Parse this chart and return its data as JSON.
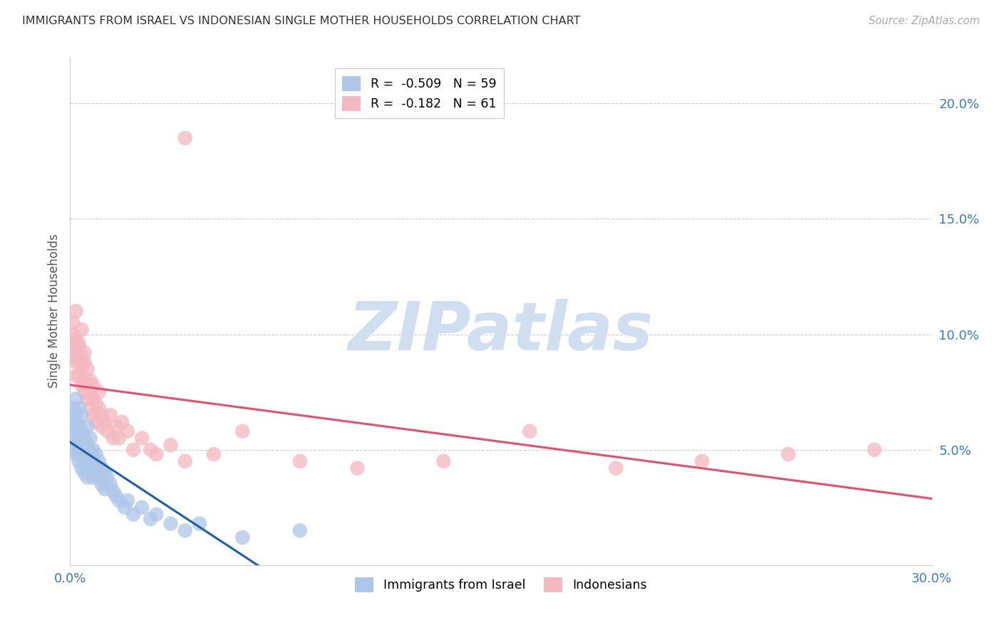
{
  "title": "IMMIGRANTS FROM ISRAEL VS INDONESIAN SINGLE MOTHER HOUSEHOLDS CORRELATION CHART",
  "source": "Source: ZipAtlas.com",
  "ylabel": "Single Mother Households",
  "xlim": [
    0.0,
    0.3
  ],
  "ylim": [
    0.0,
    0.22
  ],
  "xticks": [
    0.0,
    0.05,
    0.1,
    0.15,
    0.2,
    0.25,
    0.3
  ],
  "xticklabels": [
    "0.0%",
    "",
    "",
    "",
    "",
    "",
    "30.0%"
  ],
  "yticks_right": [
    0.05,
    0.1,
    0.15,
    0.2
  ],
  "yticklabels_right": [
    "5.0%",
    "10.0%",
    "15.0%",
    "20.0%"
  ],
  "legend1_color": "#aec6e8",
  "legend2_color": "#f4b8c1",
  "line1_color": "#1a5fa8",
  "line2_color": "#e05070",
  "scatter1_color": "#aec6e8",
  "scatter2_color": "#f4b8c1",
  "watermark": "ZIPatlas",
  "watermark_color": "#d0dff0",
  "R1": -0.509,
  "N1": 59,
  "R2": -0.182,
  "N2": 61,
  "israel_x": [
    0.001,
    0.001,
    0.001,
    0.001,
    0.001,
    0.002,
    0.002,
    0.002,
    0.002,
    0.002,
    0.002,
    0.003,
    0.003,
    0.003,
    0.003,
    0.003,
    0.004,
    0.004,
    0.004,
    0.004,
    0.004,
    0.005,
    0.005,
    0.005,
    0.005,
    0.006,
    0.006,
    0.006,
    0.006,
    0.007,
    0.007,
    0.007,
    0.008,
    0.008,
    0.008,
    0.009,
    0.009,
    0.01,
    0.01,
    0.011,
    0.011,
    0.012,
    0.012,
    0.013,
    0.014,
    0.015,
    0.016,
    0.017,
    0.019,
    0.02,
    0.022,
    0.025,
    0.028,
    0.03,
    0.035,
    0.04,
    0.045,
    0.06,
    0.08
  ],
  "israel_y": [
    0.065,
    0.068,
    0.06,
    0.055,
    0.05,
    0.072,
    0.065,
    0.058,
    0.052,
    0.048,
    0.062,
    0.06,
    0.055,
    0.05,
    0.068,
    0.045,
    0.058,
    0.052,
    0.048,
    0.065,
    0.042,
    0.055,
    0.05,
    0.045,
    0.04,
    0.06,
    0.052,
    0.045,
    0.038,
    0.055,
    0.048,
    0.042,
    0.05,
    0.044,
    0.038,
    0.048,
    0.042,
    0.045,
    0.038,
    0.042,
    0.035,
    0.04,
    0.033,
    0.038,
    0.035,
    0.032,
    0.03,
    0.028,
    0.025,
    0.028,
    0.022,
    0.025,
    0.02,
    0.022,
    0.018,
    0.015,
    0.018,
    0.012,
    0.015
  ],
  "indonesian_x": [
    0.001,
    0.001,
    0.001,
    0.001,
    0.002,
    0.002,
    0.002,
    0.002,
    0.002,
    0.003,
    0.003,
    0.003,
    0.003,
    0.004,
    0.004,
    0.004,
    0.004,
    0.005,
    0.005,
    0.005,
    0.005,
    0.006,
    0.006,
    0.006,
    0.007,
    0.007,
    0.007,
    0.008,
    0.008,
    0.008,
    0.009,
    0.009,
    0.01,
    0.01,
    0.011,
    0.011,
    0.012,
    0.013,
    0.014,
    0.015,
    0.016,
    0.017,
    0.018,
    0.02,
    0.022,
    0.025,
    0.028,
    0.03,
    0.035,
    0.04,
    0.05,
    0.06,
    0.08,
    0.1,
    0.13,
    0.16,
    0.19,
    0.22,
    0.25,
    0.28,
    0.04
  ],
  "indonesian_y": [
    0.1,
    0.095,
    0.09,
    0.105,
    0.098,
    0.092,
    0.088,
    0.082,
    0.11,
    0.096,
    0.088,
    0.082,
    0.095,
    0.09,
    0.085,
    0.078,
    0.102,
    0.08,
    0.088,
    0.075,
    0.092,
    0.078,
    0.072,
    0.085,
    0.075,
    0.068,
    0.08,
    0.072,
    0.065,
    0.078,
    0.07,
    0.062,
    0.068,
    0.075,
    0.06,
    0.065,
    0.062,
    0.058,
    0.065,
    0.055,
    0.06,
    0.055,
    0.062,
    0.058,
    0.05,
    0.055,
    0.05,
    0.048,
    0.052,
    0.045,
    0.048,
    0.058,
    0.045,
    0.042,
    0.045,
    0.058,
    0.042,
    0.045,
    0.048,
    0.05,
    0.185
  ]
}
